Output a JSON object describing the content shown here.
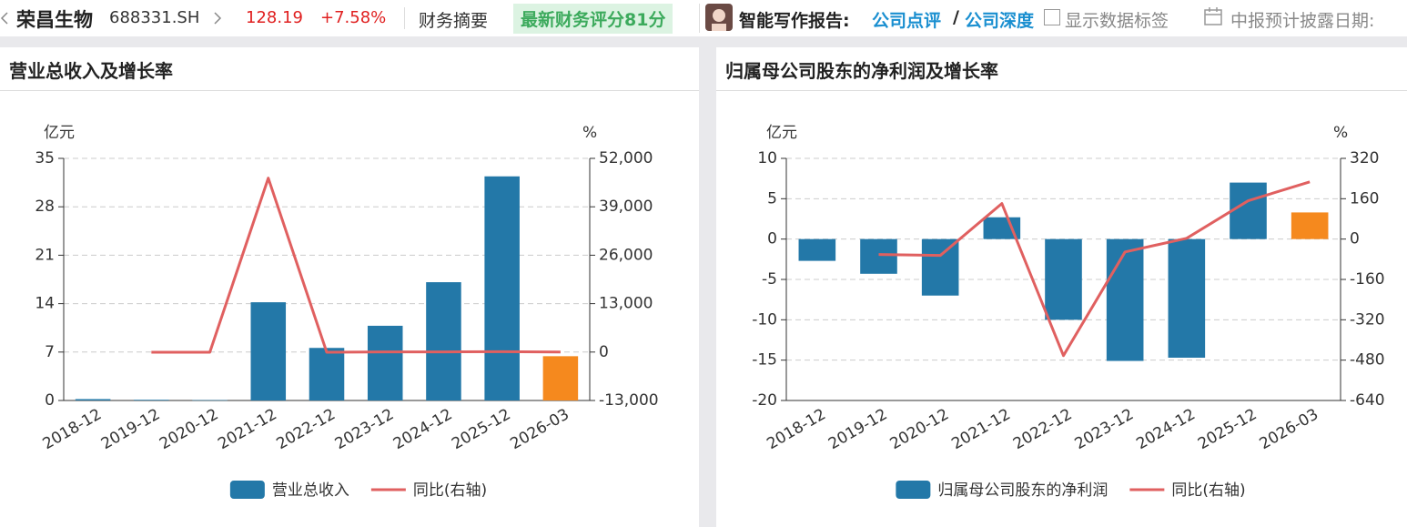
{
  "header": {
    "company": "荣昌生物",
    "code": "688331.SH",
    "price": "128.19",
    "change": "+7.58%",
    "tab": "财务摘要",
    "score": "最新财务评分81分",
    "report_label": "智能写作报告:",
    "link1": "公司点评",
    "separator": "/",
    "link2": "公司深度",
    "checkbox_label": "显示数据标签",
    "date_label": "中报预计披露日期:"
  },
  "chart_data": [
    {
      "type": "bar-line",
      "title": "营业总收入及增长率",
      "y_label": "亿元",
      "y2_label": "%",
      "categories": [
        "2018-12",
        "2019-12",
        "2020-12",
        "2021-12",
        "2022-12",
        "2023-12",
        "2024-12",
        "2025-12",
        "2026-03"
      ],
      "series": [
        {
          "name": "营业总收入",
          "type": "bar",
          "color": "#2378a8",
          "colors": [
            "#2378a8",
            "#2378a8",
            "#2378a8",
            "#2378a8",
            "#2378a8",
            "#2378a8",
            "#2378a8",
            "#2378a8",
            "#f5891e"
          ],
          "values": [
            0.2,
            0.1,
            0.05,
            14.2,
            7.6,
            10.8,
            17.1,
            32.4,
            6.4
          ]
        },
        {
          "name": "同比(右轴)",
          "type": "line",
          "axis": "y2",
          "color": "#e06060",
          "values": [
            null,
            -47,
            -40,
            46700,
            -46,
            41,
            58,
            89,
            15
          ]
        }
      ],
      "ylim": [
        0,
        35
      ],
      "yticks": [
        0,
        7,
        14,
        21,
        28,
        35
      ],
      "y2lim": [
        -13000,
        52000
      ],
      "y2ticks": [
        {
          "value": -13000,
          "label": "-13,000"
        },
        0,
        {
          "value": 13000,
          "label": "13,000"
        },
        {
          "value": 26000,
          "label": "26,000"
        },
        {
          "value": 39000,
          "label": "39,000"
        },
        {
          "value": 52000,
          "label": "52,000"
        }
      ],
      "grid": true
    },
    {
      "type": "bar-line",
      "title": "归属母公司股东的净利润及增长率",
      "y_label": "亿元",
      "y2_label": "%",
      "categories": [
        "2018-12",
        "2019-12",
        "2020-12",
        "2021-12",
        "2022-12",
        "2023-12",
        "2024-12",
        "2025-12",
        "2026-03"
      ],
      "series": [
        {
          "name": "归属母公司股东的净利润",
          "type": "bar",
          "color": "#2378a8",
          "colors": [
            "#2378a8",
            "#2378a8",
            "#2378a8",
            "#2378a8",
            "#2378a8",
            "#2378a8",
            "#2378a8",
            "#2378a8",
            "#f5891e"
          ],
          "values": [
            -2.7,
            -4.3,
            -7.0,
            2.7,
            -10.0,
            -15.1,
            -14.7,
            7.0,
            3.3
          ]
        },
        {
          "name": "同比(右轴)",
          "type": "line",
          "axis": "y2",
          "color": "#e06060",
          "values": [
            null,
            -61,
            -65,
            141,
            -462,
            -51,
            3,
            152,
            227
          ]
        }
      ],
      "ylim": [
        -20,
        10
      ],
      "yticks": [
        -20,
        -15,
        -10,
        -5,
        0,
        5,
        10
      ],
      "y2lim": [
        -640,
        320
      ],
      "y2ticks": [
        -640,
        -480,
        -320,
        -160,
        0,
        160,
        320
      ],
      "grid": true
    }
  ]
}
